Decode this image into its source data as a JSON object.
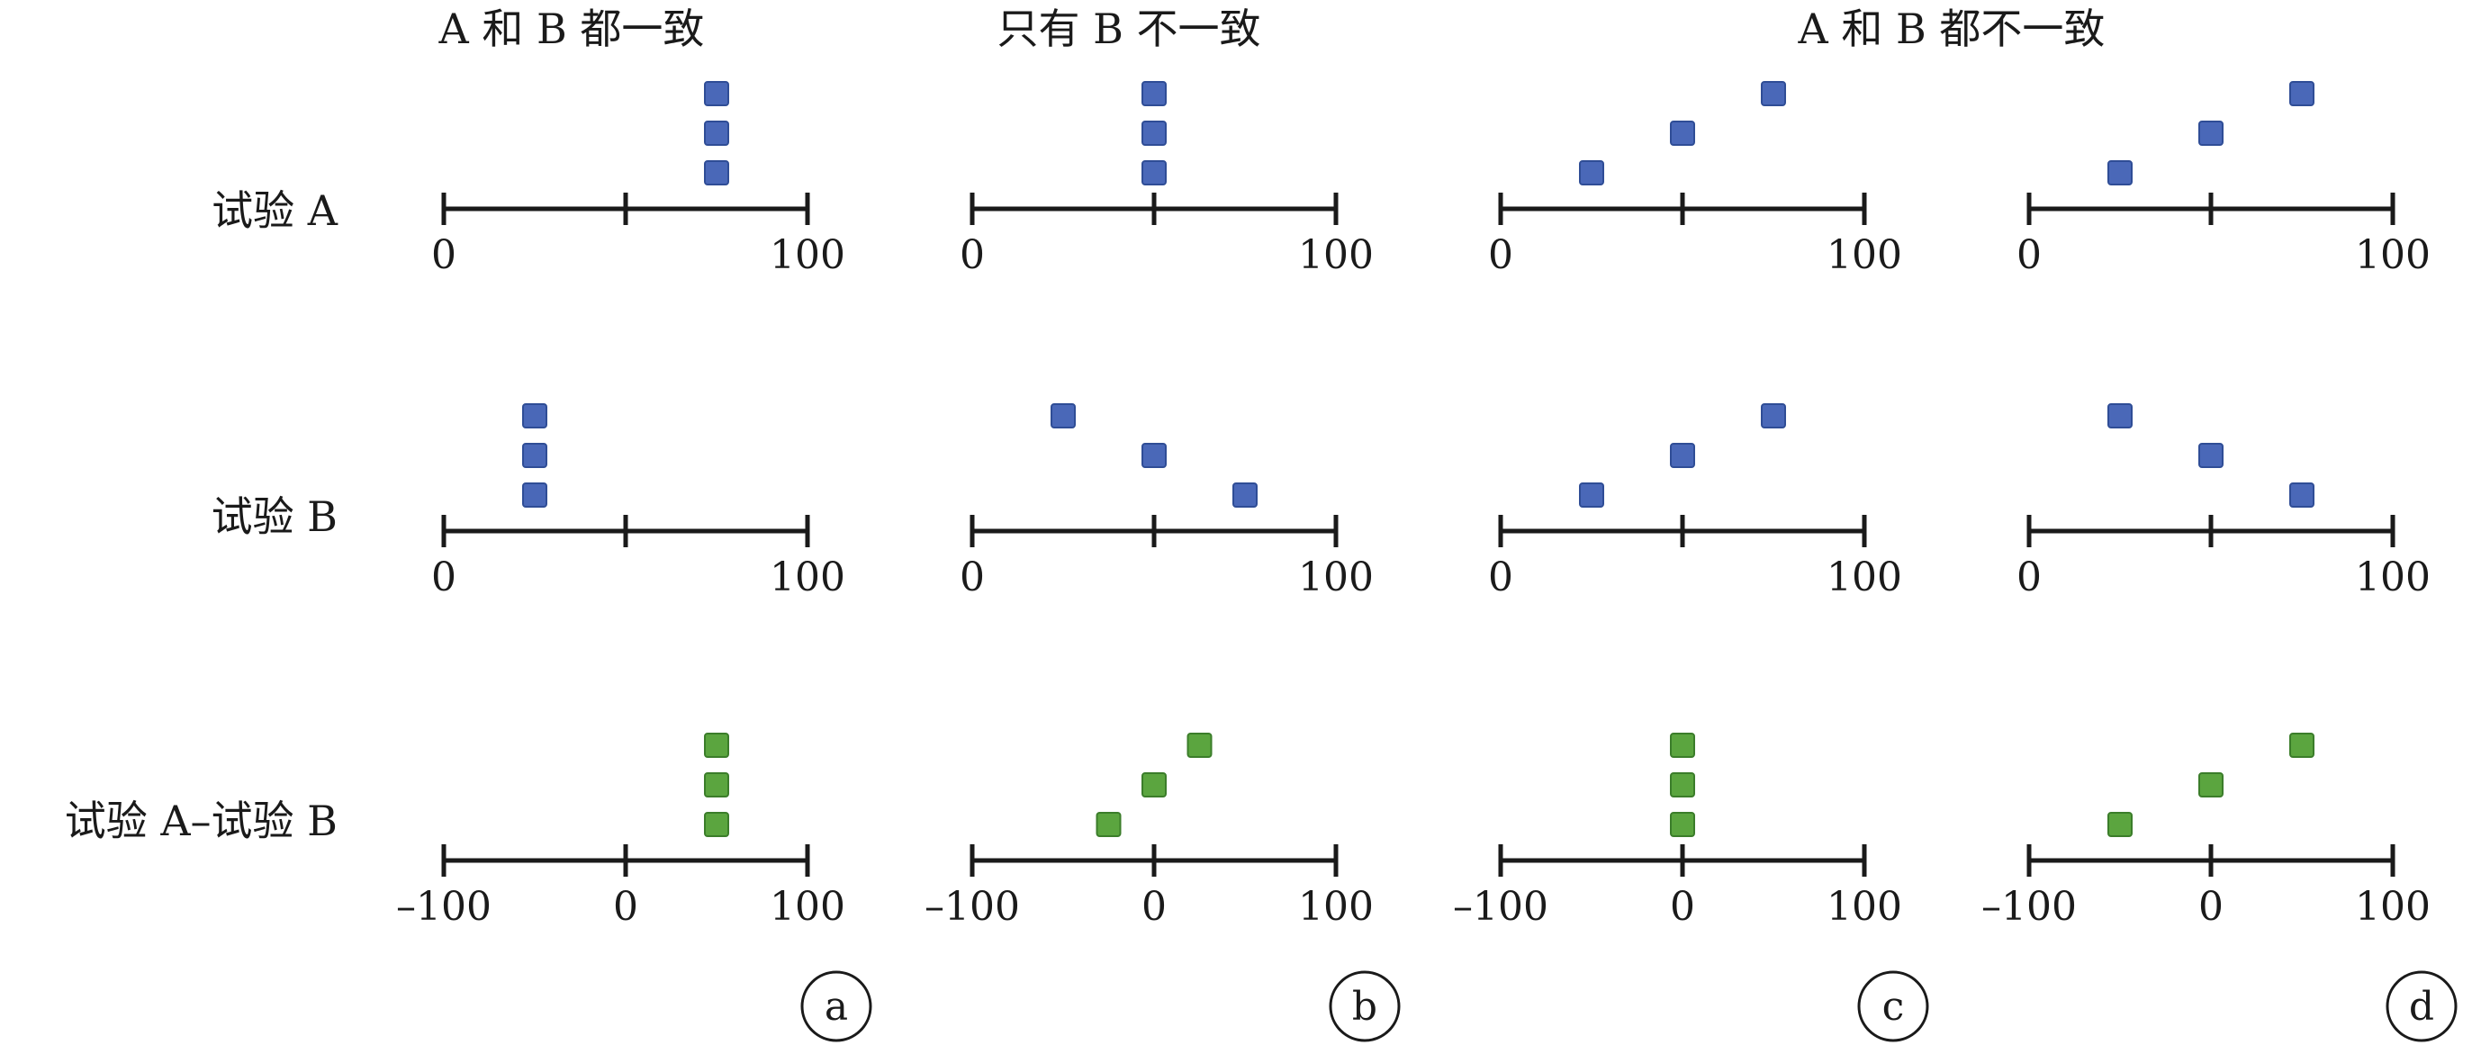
{
  "column_headers": [
    "A 和 B 都一致",
    "只有 B 不一致",
    "A 和 B 都不一致"
  ],
  "row_labels": [
    "试验 A",
    "试验 B",
    "试验 A–试验 B"
  ],
  "panel_labels": [
    "a",
    "b",
    "c",
    "d"
  ],
  "colors": {
    "blue_marker": "#4a68b8",
    "blue_edge": "#2f4d96",
    "green_marker": "#5ba53f",
    "green_edge": "#3b7d2a",
    "axis": "#1a1a1a"
  },
  "axes": [
    {
      "min": 0,
      "max": 100,
      "ticks": [
        0,
        50,
        100
      ],
      "tick_labels": [
        "0",
        "",
        "100"
      ]
    },
    {
      "min": 0,
      "max": 100,
      "ticks": [
        0,
        50,
        100
      ],
      "tick_labels": [
        "0",
        "",
        "100"
      ]
    },
    {
      "min": -100,
      "max": 100,
      "ticks": [
        -100,
        0,
        100
      ],
      "tick_labels": [
        "–100",
        "0",
        "100"
      ]
    }
  ],
  "chart_data": {
    "type": "scatter",
    "panels": [
      {
        "label": "a",
        "row_points": [
          [
            75,
            75,
            75
          ],
          [
            25,
            25,
            25
          ],
          [
            50,
            50,
            50
          ]
        ]
      },
      {
        "label": "b",
        "row_points": [
          [
            50,
            50,
            50
          ],
          [
            75,
            50,
            25
          ],
          [
            -25,
            0,
            25
          ]
        ]
      },
      {
        "label": "c",
        "row_points": [
          [
            25,
            50,
            75
          ],
          [
            25,
            50,
            75
          ],
          [
            0,
            0,
            0
          ]
        ]
      },
      {
        "label": "d",
        "row_points": [
          [
            25,
            50,
            75
          ],
          [
            75,
            50,
            25
          ],
          [
            -50,
            0,
            50
          ]
        ]
      }
    ]
  }
}
